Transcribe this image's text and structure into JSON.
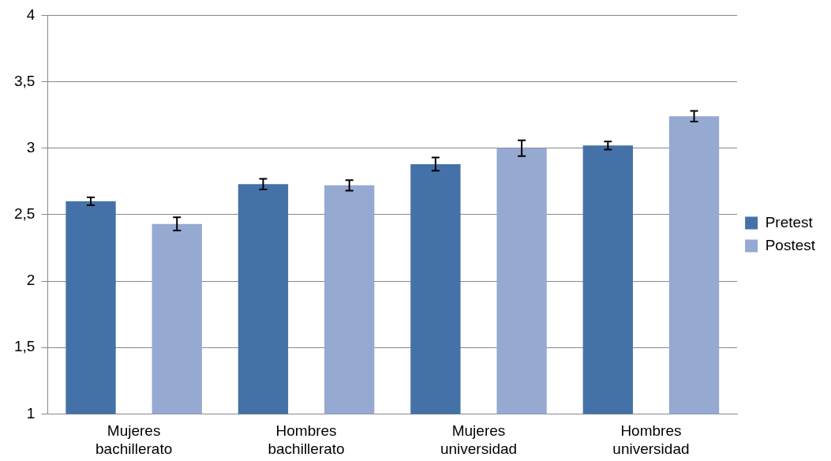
{
  "chart_data": {
    "type": "bar",
    "categories": [
      "Mujeres bachillerato",
      "Hombres bachillerato",
      "Mujeres universidad",
      "Hombres universidad"
    ],
    "series": [
      {
        "name": "Pretest",
        "color": "#4472a8",
        "values": [
          2.6,
          2.73,
          2.88,
          3.02
        ],
        "errors": [
          0.03,
          0.04,
          0.05,
          0.03
        ]
      },
      {
        "name": "Postest",
        "color": "#95a9d1",
        "values": [
          2.43,
          2.72,
          3.0,
          3.24
        ],
        "errors": [
          0.05,
          0.04,
          0.06,
          0.04
        ]
      }
    ],
    "ylim": [
      1,
      4
    ],
    "yticks": [
      {
        "value": 1,
        "label": "1"
      },
      {
        "value": 1.5,
        "label": "1,5"
      },
      {
        "value": 2,
        "label": "2"
      },
      {
        "value": 2.5,
        "label": "2,5"
      },
      {
        "value": 3,
        "label": "3"
      },
      {
        "value": 3.5,
        "label": "3,5"
      },
      {
        "value": 4,
        "label": "4"
      }
    ],
    "grid": "y",
    "legend": "right"
  }
}
